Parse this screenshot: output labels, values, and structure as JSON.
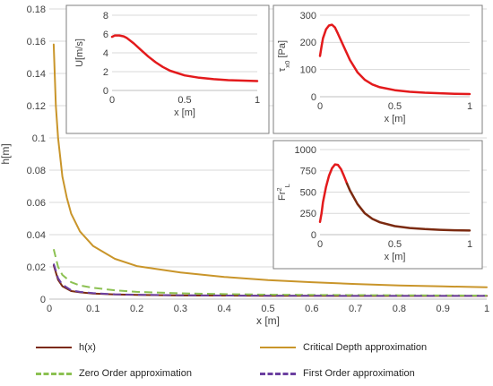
{
  "chart_data": [
    {
      "type": "line",
      "id": "main",
      "xlabel": "x [m]",
      "ylabel": "h[m]",
      "xlim": [
        0,
        1
      ],
      "ylim": [
        0,
        0.18
      ],
      "xticks": [
        "0",
        "0.1",
        "0.2",
        "0.3",
        "0.4",
        "0.5",
        "0.6",
        "0.7",
        "0.8",
        "0.9",
        "1"
      ],
      "yticks": [
        "0",
        "0.02",
        "0.04",
        "0.06",
        "0.08",
        "0.1",
        "0.12",
        "0.14",
        "0.16",
        "0.18"
      ],
      "grid": true,
      "legend_position": "bottom",
      "series": [
        {
          "name": "h(x)",
          "color": "#7b2a10",
          "dash": "solid",
          "x": [
            0.01,
            0.02,
            0.03,
            0.05,
            0.07,
            0.1,
            0.15,
            0.2,
            0.3,
            0.4,
            0.5,
            0.6,
            0.7,
            0.8,
            0.9,
            1.0
          ],
          "y": [
            0.021,
            0.012,
            0.008,
            0.005,
            0.0042,
            0.0035,
            0.0029,
            0.0026,
            0.0023,
            0.0022,
            0.0021,
            0.0021,
            0.002,
            0.002,
            0.002,
            0.002
          ]
        },
        {
          "name": "Critical Depth approximation",
          "color": "#c9952a",
          "dash": "solid",
          "x": [
            0.01,
            0.015,
            0.02,
            0.03,
            0.04,
            0.05,
            0.07,
            0.1,
            0.15,
            0.2,
            0.3,
            0.4,
            0.5,
            0.6,
            0.7,
            0.8,
            0.9,
            1.0
          ],
          "y": [
            0.158,
            0.12,
            0.1,
            0.076,
            0.063,
            0.053,
            0.042,
            0.033,
            0.025,
            0.0205,
            0.0165,
            0.0138,
            0.0118,
            0.0105,
            0.0094,
            0.0085,
            0.0079,
            0.0074
          ]
        },
        {
          "name": "Zero Order approximation",
          "color": "#8cc152",
          "dash": "dashed",
          "x": [
            0.01,
            0.02,
            0.03,
            0.05,
            0.07,
            0.1,
            0.15,
            0.2,
            0.3,
            0.4,
            0.5,
            0.6,
            0.7,
            0.8,
            0.9,
            1.0
          ],
          "y": [
            0.031,
            0.02,
            0.015,
            0.0105,
            0.0085,
            0.007,
            0.0055,
            0.0045,
            0.0036,
            0.0031,
            0.0028,
            0.0026,
            0.0025,
            0.0024,
            0.0023,
            0.0022
          ]
        },
        {
          "name": "First Order approximation",
          "color": "#6b3fa0",
          "dash": "dashed",
          "x": [
            0.01,
            0.02,
            0.03,
            0.05,
            0.07,
            0.1,
            0.15,
            0.2,
            0.3,
            0.4,
            0.5,
            0.6,
            0.7,
            0.8,
            0.9,
            1.0
          ],
          "y": [
            0.022,
            0.013,
            0.009,
            0.0055,
            0.0045,
            0.0037,
            0.003,
            0.0027,
            0.0024,
            0.0022,
            0.0021,
            0.0021,
            0.002,
            0.002,
            0.002,
            0.002
          ]
        }
      ]
    },
    {
      "type": "line",
      "id": "inset-u",
      "xlabel": "x [m]",
      "ylabel": "U[m/s]",
      "xlim": [
        0,
        1
      ],
      "ylim": [
        0,
        8
      ],
      "xticks": [
        "0",
        "0.5",
        "1"
      ],
      "yticks": [
        "0",
        "2",
        "4",
        "6",
        "8"
      ],
      "grid": true,
      "series": [
        {
          "color": "#e31a1c",
          "x": [
            0,
            0.02,
            0.05,
            0.08,
            0.1,
            0.15,
            0.2,
            0.25,
            0.3,
            0.35,
            0.4,
            0.5,
            0.6,
            0.7,
            0.8,
            0.9,
            1.0
          ],
          "y": [
            5.7,
            5.85,
            5.85,
            5.75,
            5.6,
            5.0,
            4.3,
            3.6,
            3.0,
            2.5,
            2.1,
            1.6,
            1.35,
            1.2,
            1.1,
            1.05,
            1.0
          ]
        }
      ]
    },
    {
      "type": "line",
      "id": "inset-tau",
      "xlabel": "x [m]",
      "ylabel": "τx0 [Pa]",
      "xlim": [
        0,
        1
      ],
      "ylim": [
        0,
        300
      ],
      "xticks": [
        "0",
        "0.5",
        "1"
      ],
      "yticks": [
        "0",
        "100",
        "200",
        "300"
      ],
      "grid": true,
      "series": [
        {
          "color": "#e31a1c",
          "x": [
            0,
            0.01,
            0.02,
            0.04,
            0.06,
            0.08,
            0.1,
            0.12,
            0.15,
            0.2,
            0.25,
            0.3,
            0.35,
            0.4,
            0.5,
            0.6,
            0.7,
            0.8,
            0.9,
            1.0
          ],
          "y": [
            150,
            185,
            215,
            248,
            262,
            265,
            255,
            232,
            195,
            135,
            90,
            62,
            45,
            35,
            24,
            18,
            15,
            13,
            11,
            10
          ]
        }
      ]
    },
    {
      "type": "line",
      "id": "inset-fr",
      "xlabel": "x [m]",
      "ylabel": "Fr²L",
      "ylabel_main": "Fr",
      "ylabel_sup": "2",
      "ylabel_sub": "L",
      "xlim": [
        0,
        1
      ],
      "ylim": [
        0,
        1000
      ],
      "xticks": [
        "0",
        "0.5",
        "1"
      ],
      "yticks": [
        "0",
        "250",
        "500",
        "750",
        "1000"
      ],
      "grid": true,
      "series": [
        {
          "color": "#e31a1c",
          "x": [
            0,
            0.01,
            0.02,
            0.04,
            0.06,
            0.08,
            0.1,
            0.12,
            0.14,
            0.16,
            0.18
          ],
          "y": [
            150,
            250,
            380,
            560,
            690,
            780,
            825,
            820,
            770,
            690,
            600
          ]
        },
        {
          "color": "#7b2a10",
          "x": [
            0.18,
            0.2,
            0.25,
            0.3,
            0.35,
            0.4,
            0.5,
            0.6,
            0.7,
            0.8,
            0.9,
            1.0
          ],
          "y": [
            600,
            520,
            360,
            250,
            185,
            145,
            100,
            78,
            65,
            57,
            52,
            48
          ]
        }
      ]
    }
  ]
}
